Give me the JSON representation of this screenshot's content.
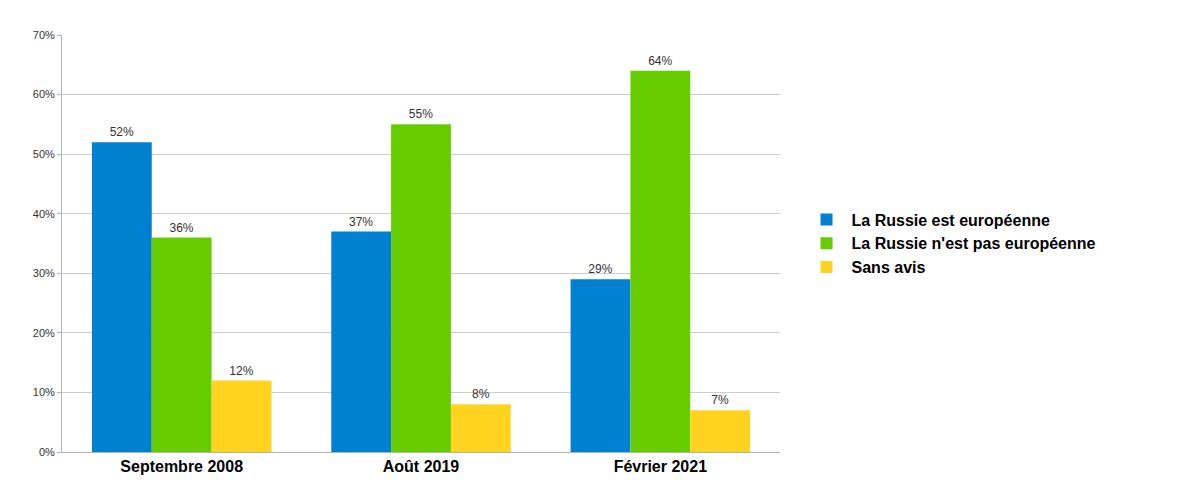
{
  "chart_data": {
    "type": "bar",
    "categories": [
      "Septembre 2008",
      "Août 2019",
      "Février 2021"
    ],
    "series": [
      {
        "name": "La Russie est européenne",
        "color": "#0080D0",
        "values": [
          52,
          37,
          29
        ],
        "value_labels": [
          "52%",
          "37%",
          "29%"
        ]
      },
      {
        "name": "La Russie n'est pas européenne",
        "color": "#66CC00",
        "values": [
          36,
          55,
          64
        ],
        "value_labels": [
          "36%",
          "55%",
          "64%"
        ]
      },
      {
        "name": "Sans avis",
        "color": "#FFD320",
        "values": [
          12,
          8,
          7
        ],
        "value_labels": [
          "12%",
          "8%",
          "7%"
        ]
      }
    ],
    "ylim": [
      0,
      70
    ],
    "yticks": [
      {
        "value": 0,
        "label": "0%"
      },
      {
        "value": 10,
        "label": "10%"
      },
      {
        "value": 20,
        "label": "20%"
      },
      {
        "value": 30,
        "label": "30%"
      },
      {
        "value": 40,
        "label": "40%"
      },
      {
        "value": 50,
        "label": "50%"
      },
      {
        "value": 60,
        "label": "60%"
      },
      {
        "value": 70,
        "label": "70%"
      }
    ],
    "grid": true,
    "legend": "right",
    "data_labels": true
  }
}
